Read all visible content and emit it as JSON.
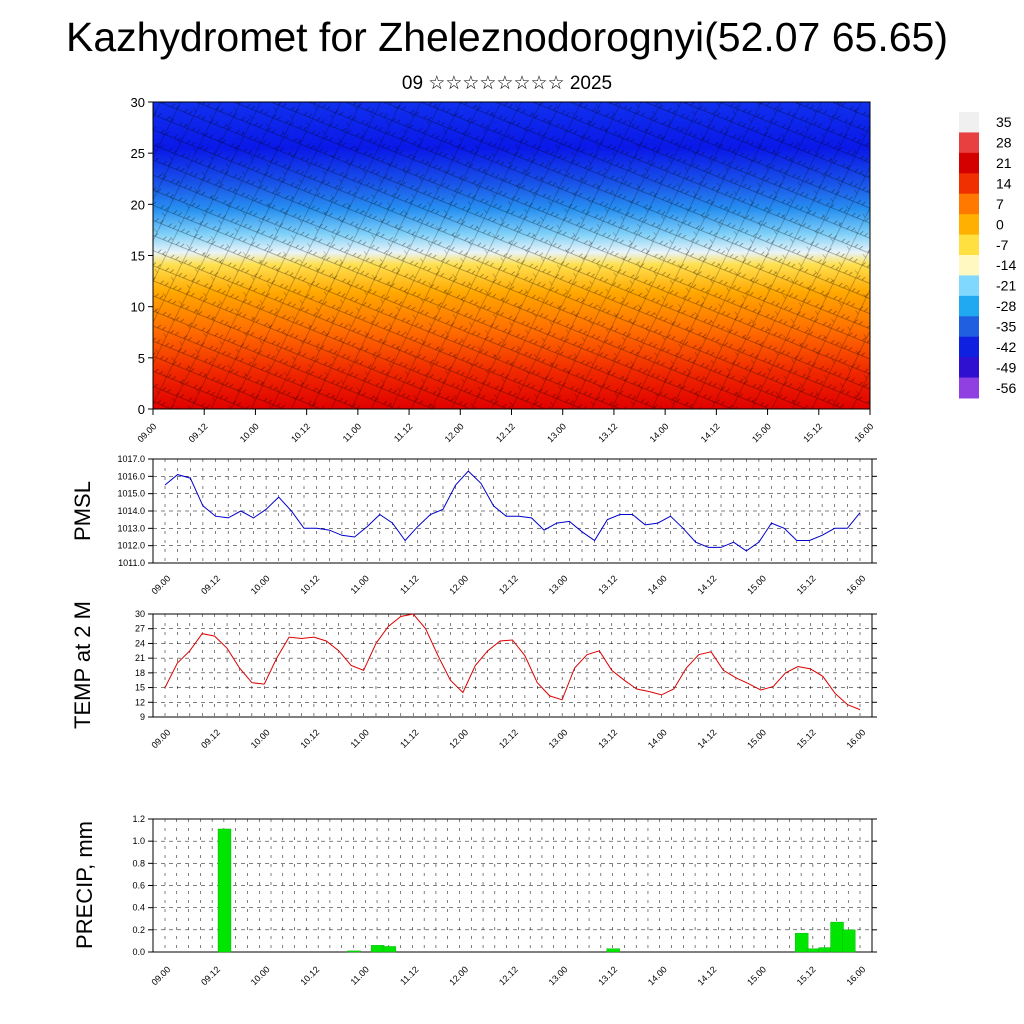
{
  "header": {
    "title": "Kazhydromet for Zheleznodorognyi(52.07 65.65)",
    "subtitle": "09 ☆☆☆☆☆☆☆☆ 2025"
  },
  "time_axis": {
    "labels": [
      "09.00",
      "09.12",
      "10.00",
      "10.12",
      "11.00",
      "11.12",
      "12.00",
      "12.12",
      "13.00",
      "13.12",
      "14.00",
      "14.12",
      "15.00",
      "15.12",
      "16.00"
    ]
  },
  "colorbar": {
    "labels": [
      "35",
      "28",
      "21",
      "14",
      "7",
      "0",
      "-7",
      "-14",
      "-21",
      "-28",
      "-35",
      "-42",
      "-49",
      "-56"
    ],
    "stops": [
      "#f0f0f0",
      "#e84040",
      "#d40000",
      "#f03000",
      "#ff7800",
      "#ffb000",
      "#ffe040",
      "#fff8c0",
      "#80d8ff",
      "#20a8f0",
      "#2060e0",
      "#1020e0",
      "#3010d0",
      "#9040e0"
    ]
  },
  "chart_data": [
    {
      "type": "heatmap",
      "title": "",
      "xlabel": "",
      "ylabel": "",
      "ylim": [
        0,
        30
      ],
      "y_ticks": [
        "0",
        "5",
        "10",
        "15",
        "20",
        "25",
        "30"
      ],
      "value_range": [
        -56,
        35
      ],
      "description_of_field": "cross-section with wind barbs"
    },
    {
      "type": "line",
      "ylabel": "PMSL",
      "ylim": [
        1011.0,
        1017.0
      ],
      "y_ticks": [
        "1011.0",
        "1012.0",
        "1013.0",
        "1014.0",
        "1015.0",
        "1016.0",
        "1017.0"
      ],
      "color": "#0000cc",
      "x_step_hours": 3,
      "values": [
        1015.5,
        1016.1,
        1015.9,
        1014.3,
        1013.7,
        1013.6,
        1014.0,
        1013.6,
        1014.1,
        1014.8,
        1014.0,
        1013.0,
        1013.0,
        1012.9,
        1012.6,
        1012.5,
        1013.1,
        1013.8,
        1013.3,
        1012.3,
        1013.1,
        1013.8,
        1014.1,
        1015.5,
        1016.3,
        1015.6,
        1014.3,
        1013.7,
        1013.7,
        1013.6,
        1012.9,
        1013.3,
        1013.4,
        1012.8,
        1012.3,
        1013.5,
        1013.8,
        1013.8,
        1013.2,
        1013.3,
        1013.7,
        1013.0,
        1012.2,
        1011.9,
        1011.9,
        1012.2,
        1011.7,
        1012.2,
        1013.3,
        1013.0,
        1012.3,
        1012.3,
        1012.6,
        1013.0,
        1013.0,
        1013.9
      ]
    },
    {
      "type": "line",
      "ylabel": "TEMP at 2 M",
      "ylim": [
        9,
        30
      ],
      "y_ticks": [
        "9",
        "12",
        "15",
        "18",
        "21",
        "24",
        "27",
        "30"
      ],
      "color": "#dd0000",
      "x_step_hours": 3,
      "values": [
        15,
        20,
        22.5,
        26,
        25.5,
        23,
        19,
        16,
        15.7,
        21,
        25.3,
        25,
        25.3,
        24.5,
        22.5,
        19.5,
        18.5,
        24,
        27.5,
        29.5,
        30,
        27,
        21.5,
        16.5,
        14,
        19.5,
        22.5,
        24.5,
        24.7,
        21.5,
        16,
        13.3,
        12.5,
        19,
        21.7,
        22.5,
        18.5,
        16.5,
        14.7,
        14.2,
        13.5,
        14.7,
        19,
        21.7,
        22.3,
        18.5,
        17,
        15.8,
        14.5,
        15.2,
        18,
        19.3,
        18.8,
        17.3,
        13.8,
        11.5,
        10.5
      ]
    },
    {
      "type": "bar",
      "ylabel": "PRECIP, mm",
      "ylim": [
        0,
        1.2
      ],
      "y_ticks": [
        "0.0",
        "0.2",
        "0.4",
        "0.6",
        "0.8",
        "1.0",
        "1.2"
      ],
      "color": "#00e600",
      "x_step_hours": 3,
      "values": [
        0,
        0,
        0,
        0,
        0,
        1.11,
        0,
        0,
        0,
        0,
        0,
        0,
        0,
        0,
        0,
        0,
        0.01,
        0,
        0.06,
        0.05,
        0,
        0,
        0,
        0,
        0,
        0,
        0,
        0,
        0,
        0,
        0,
        0,
        0,
        0,
        0,
        0,
        0,
        0,
        0.03,
        0,
        0,
        0,
        0,
        0,
        0,
        0,
        0,
        0,
        0,
        0,
        0,
        0,
        0,
        0,
        0.17,
        0.03,
        0.04,
        0.27,
        0.2,
        0
      ]
    }
  ]
}
